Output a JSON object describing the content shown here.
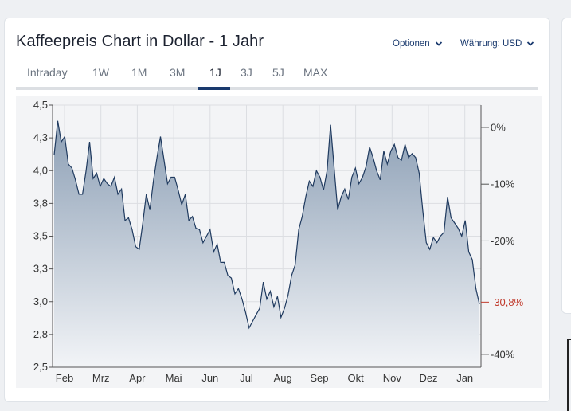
{
  "header": {
    "title": "Kaffeepreis Chart in Dollar - 1 Jahr",
    "options_label": "Optionen",
    "currency_label": "Währung: USD"
  },
  "tabs": [
    {
      "label": "Intraday",
      "active": false
    },
    {
      "label": "1W",
      "active": false
    },
    {
      "label": "1M",
      "active": false
    },
    {
      "label": "3M",
      "active": false
    },
    {
      "label": "1J",
      "active": true
    },
    {
      "label": "3J",
      "active": false
    },
    {
      "label": "5J",
      "active": false
    },
    {
      "label": "MAX",
      "active": false
    }
  ],
  "colors": {
    "line": "#1f3a5f",
    "fill_top": "#8c9fb5",
    "fill_bottom": "#f2f4f7",
    "accent": "#1a3a6e",
    "negative": "#c0392b"
  },
  "chart_data": {
    "type": "area",
    "ylim": [
      2.5,
      4.5
    ],
    "y_ticks": [
      "4,5",
      "4,3",
      "4,0",
      "3,8",
      "3,5",
      "3,3",
      "3,0",
      "2,8",
      "2,5"
    ],
    "y2_ticks": [
      "0%",
      "-10%",
      "-20%",
      "-30,8%",
      "-40%"
    ],
    "x_ticks": [
      "Feb",
      "Mrz",
      "Apr",
      "Mai",
      "Jun",
      "Jul",
      "Aug",
      "Sep",
      "Okt",
      "Nov",
      "Dez",
      "Jan"
    ],
    "y2_reference": 4.33,
    "series": [
      {
        "values": [
          4.12,
          4.38,
          4.22,
          4.26,
          4.05,
          4.02,
          3.93,
          3.82,
          3.82,
          4.0,
          4.22,
          3.94,
          3.98,
          3.88,
          3.94,
          3.9,
          3.88,
          3.95,
          3.82,
          3.86,
          3.62,
          3.64,
          3.55,
          3.42,
          3.4,
          3.6,
          3.82,
          3.7,
          3.92,
          4.1,
          4.26,
          4.08,
          3.9,
          3.95,
          3.95,
          3.85,
          3.74,
          3.82,
          3.62,
          3.65,
          3.56,
          3.55,
          3.45,
          3.5,
          3.55,
          3.38,
          3.44,
          3.3,
          3.3,
          3.2,
          3.18,
          3.06,
          3.1,
          3.02,
          2.92,
          2.8,
          2.85,
          2.9,
          2.95,
          3.15,
          3.02,
          3.08,
          2.96,
          3.04,
          2.88,
          2.95,
          3.05,
          3.2,
          3.28,
          3.55,
          3.65,
          3.8,
          3.92,
          3.88,
          4.0,
          3.95,
          3.85,
          4.0,
          4.35,
          4.02,
          3.7,
          3.8,
          3.86,
          3.78,
          3.95,
          4.02,
          3.9,
          3.95,
          4.03,
          4.18,
          4.1,
          4.0,
          3.93,
          4.15,
          4.05,
          4.15,
          4.2,
          4.1,
          4.08,
          4.2,
          4.1,
          4.13,
          4.1,
          3.98,
          3.7,
          3.45,
          3.4,
          3.49,
          3.45,
          3.5,
          3.53,
          3.8,
          3.64,
          3.6,
          3.56,
          3.5,
          3.62,
          3.38,
          3.32,
          3.1,
          2.98
        ]
      }
    ]
  }
}
